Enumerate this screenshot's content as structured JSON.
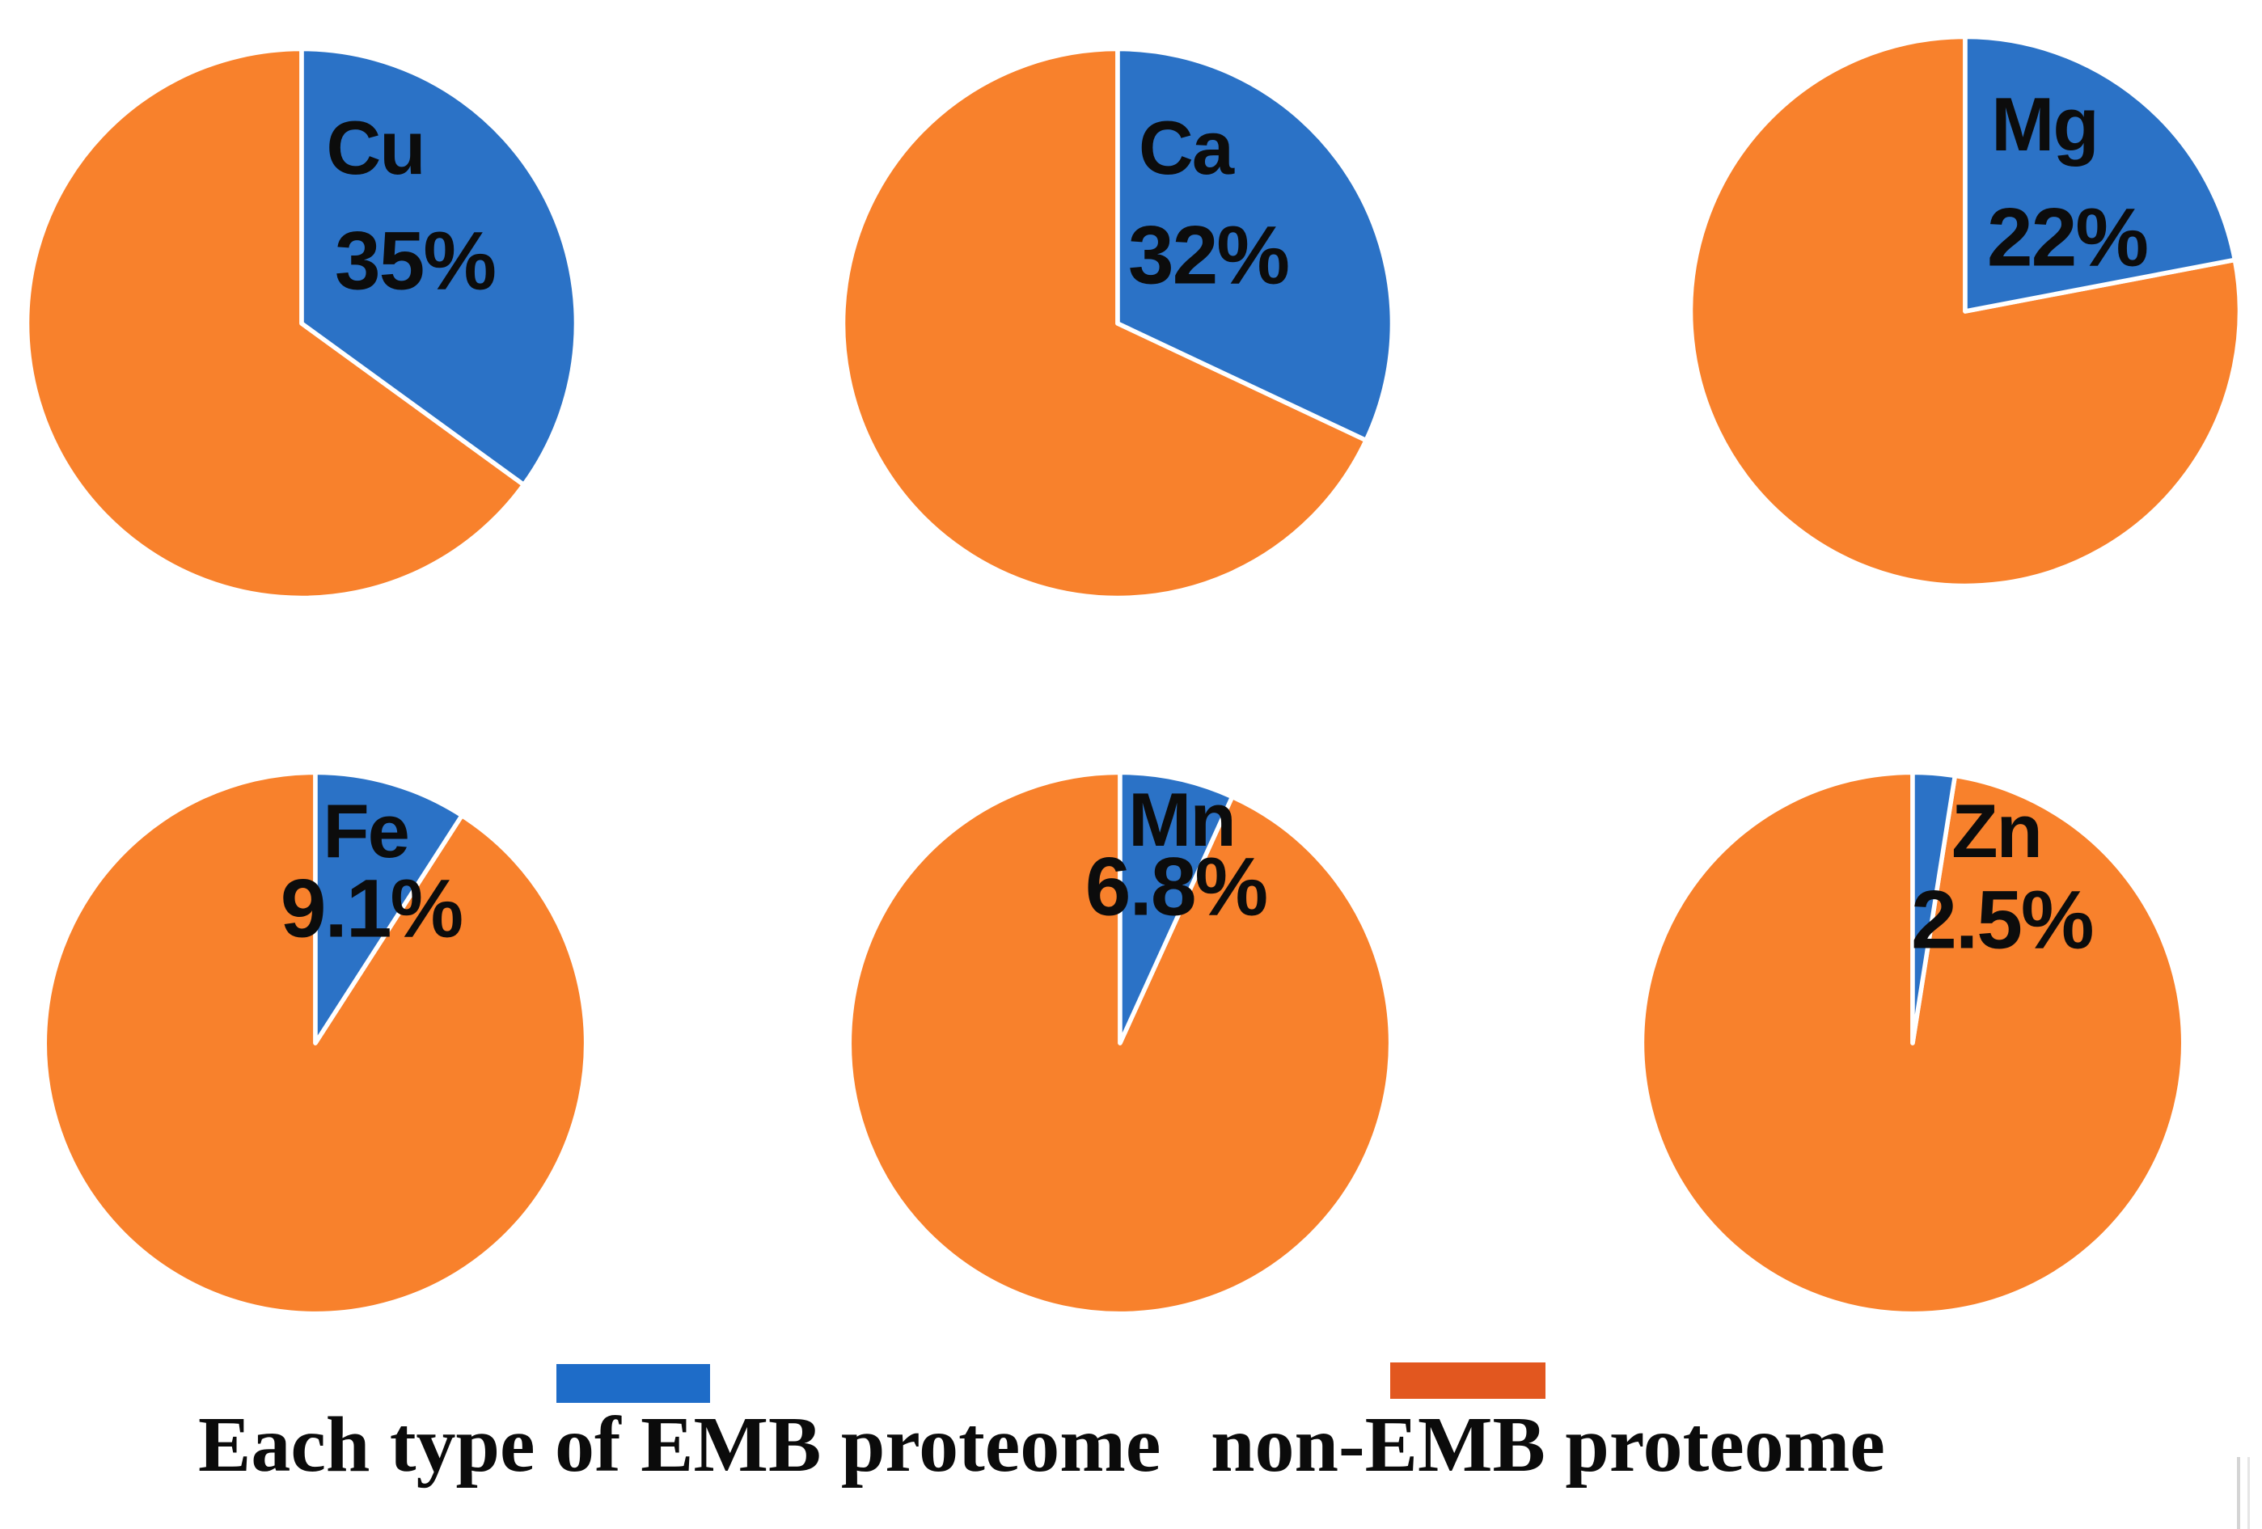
{
  "colors": {
    "emb_blue": "#2B72C6",
    "non_emb_orange": "#F8812C",
    "legend_blue": "#1E6CC8",
    "legend_orange": "#E2571F",
    "slice_border": "#FFFFFF",
    "label_text": "#0C0C0C"
  },
  "chart_data": {
    "type": "pie",
    "description": "Six pie charts, each showing the share of one metal-type EMB proteome (blue) versus the non-EMB proteome (orange). Blue slice starts at 12 o'clock and sweeps clockwise.",
    "unit": "%",
    "legend_position": "bottom",
    "pies": [
      {
        "element": "Cu",
        "emb_label": "35%",
        "emb_value": 35,
        "non_emb_value": 65
      },
      {
        "element": "Ca",
        "emb_label": "32%",
        "emb_value": 32,
        "non_emb_value": 68
      },
      {
        "element": "Mg",
        "emb_label": "22%",
        "emb_value": 22,
        "non_emb_value": 78
      },
      {
        "element": "Fe",
        "emb_label": "9.1%",
        "emb_value": 9.1,
        "non_emb_value": 90.9
      },
      {
        "element": "Mn",
        "emb_label": "6.8%",
        "emb_value": 6.8,
        "non_emb_value": 93.2
      },
      {
        "element": "Zn",
        "emb_label": "2.5%",
        "emb_value": 2.5,
        "non_emb_value": 97.5
      }
    ]
  },
  "legend": {
    "items": [
      {
        "label": "Each type of EMB proteome",
        "swatch": "blue-swatch"
      },
      {
        "label": "non-EMB proteome",
        "swatch": "orange-swatch"
      }
    ]
  }
}
